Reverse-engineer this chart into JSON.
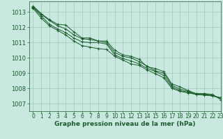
{
  "background_color": "#c8e8e0",
  "grid_color": "#a0c8bc",
  "line_color": "#1a5c2a",
  "marker_color": "#1a5c2a",
  "xlabel": "Graphe pression niveau de la mer (hPa)",
  "xlabel_fontsize": 6.5,
  "tick_fontsize": 5.5,
  "ytick_fontsize": 6,
  "xlim": [
    -0.5,
    23
  ],
  "ylim": [
    1006.5,
    1013.7
  ],
  "yticks": [
    1007,
    1008,
    1009,
    1010,
    1011,
    1012,
    1013
  ],
  "xticks": [
    0,
    1,
    2,
    3,
    4,
    5,
    6,
    7,
    8,
    9,
    10,
    11,
    12,
    13,
    14,
    15,
    16,
    17,
    18,
    19,
    20,
    21,
    22,
    23
  ],
  "series": [
    [
      1013.4,
      1012.9,
      1012.5,
      1012.2,
      1012.15,
      1011.7,
      1011.3,
      1011.3,
      1011.1,
      1011.1,
      1010.5,
      1010.2,
      1010.1,
      1009.9,
      1009.4,
      1009.3,
      1009.1,
      1008.3,
      1008.1,
      1007.85,
      1007.65,
      1007.65,
      1007.6,
      1007.25
    ],
    [
      1013.35,
      1012.85,
      1012.45,
      1012.1,
      1011.9,
      1011.5,
      1011.25,
      1011.2,
      1011.1,
      1011.0,
      1010.35,
      1010.1,
      1010.0,
      1009.75,
      1009.45,
      1009.15,
      1009.0,
      1008.2,
      1007.95,
      1007.8,
      1007.65,
      1007.65,
      1007.55,
      1007.35
    ],
    [
      1013.3,
      1012.75,
      1012.2,
      1011.9,
      1011.65,
      1011.3,
      1011.05,
      1011.0,
      1011.0,
      1010.9,
      1010.2,
      1009.95,
      1009.8,
      1009.6,
      1009.3,
      1009.1,
      1008.85,
      1008.1,
      1007.85,
      1007.75,
      1007.6,
      1007.6,
      1007.5,
      1007.4
    ],
    [
      1013.25,
      1012.6,
      1012.1,
      1011.8,
      1011.5,
      1011.1,
      1010.8,
      1010.7,
      1010.6,
      1010.55,
      1010.1,
      1009.85,
      1009.6,
      1009.5,
      1009.2,
      1008.95,
      1008.7,
      1008.0,
      1007.8,
      1007.7,
      1007.6,
      1007.55,
      1007.5,
      1007.35
    ]
  ]
}
